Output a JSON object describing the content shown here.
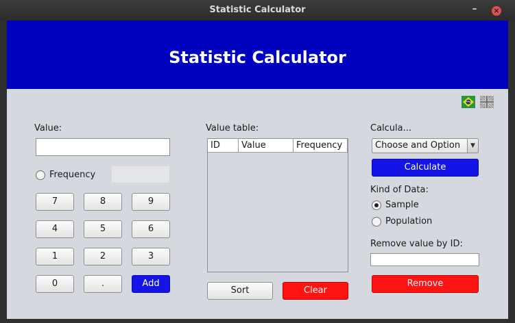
{
  "window": {
    "title": "Statistic Calculator"
  },
  "header": {
    "title": "Statistic Calculator"
  },
  "flags": {
    "brazil": "brazil-flag-icon",
    "uk": "uk-flag-icon"
  },
  "left": {
    "value_label": "Value:",
    "value_input": "",
    "frequency_label": "Frequency",
    "frequency_input": "",
    "keypad": [
      "7",
      "8",
      "9",
      "4",
      "5",
      "6",
      "1",
      "2",
      "3",
      "0",
      ".",
      "Add"
    ]
  },
  "middle": {
    "table_label": "Value table:",
    "columns": [
      "ID",
      "Value",
      "Frequency"
    ],
    "sort_label": "Sort",
    "clear_label": "Clear"
  },
  "right": {
    "calc_label": "Calcula...",
    "select_value": "Choose and Option",
    "calculate_label": "Calculate",
    "kind_label": "Kind of Data:",
    "sample_label": "Sample",
    "population_label": "Population",
    "remove_label": "Remove value by ID:",
    "remove_input": "",
    "remove_button": "Remove"
  },
  "colors": {
    "header_bg": "#0000bf",
    "accent_blue": "#1414e6",
    "danger_red": "#ff1414",
    "panel_bg": "#d5d8df"
  }
}
